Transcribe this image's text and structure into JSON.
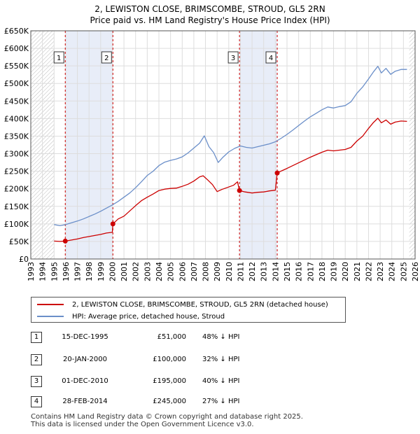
{
  "title_line1": "2, LEWISTON CLOSE, BRIMSCOMBE, STROUD, GL5 2RN",
  "title_line2": "Price paid vs. HM Land Registry's House Price Index (HPI)",
  "chart_data": {
    "type": "line",
    "title": "2, LEWISTON CLOSE, BRIMSCOMBE, STROUD, GL5 2RN — Price paid vs. HM Land Registry's House Price Index (HPI)",
    "xlim": [
      1993,
      2026
    ],
    "ylim": [
      0,
      650000
    ],
    "x_ticks": [
      1993,
      1994,
      1995,
      1996,
      1997,
      1998,
      1999,
      2000,
      2001,
      2002,
      2003,
      2004,
      2005,
      2006,
      2007,
      2008,
      2009,
      2010,
      2011,
      2012,
      2013,
      2014,
      2015,
      2016,
      2017,
      2018,
      2019,
      2020,
      2021,
      2022,
      2023,
      2024,
      2025,
      2026
    ],
    "y_ticks": [
      0,
      50000,
      100000,
      150000,
      200000,
      250000,
      300000,
      350000,
      400000,
      450000,
      500000,
      550000,
      600000,
      650000
    ],
    "y_tick_labels": [
      "£0",
      "£50K",
      "£100K",
      "£150K",
      "£200K",
      "£250K",
      "£300K",
      "£350K",
      "£400K",
      "£450K",
      "£500K",
      "£550K",
      "£600K",
      "£650K"
    ],
    "grid": true,
    "colors": {
      "property": "#cc0000",
      "hpi": "#6b8fc9",
      "shade": "#e8edf8",
      "hatch": "#bbbbbb"
    },
    "data_start_year": 1995.0,
    "data_end_year": 2025.5,
    "series": [
      {
        "name": "2, LEWISTON CLOSE, BRIMSCOMBE, STROUD, GL5 2RN (detached house)",
        "points": [
          [
            1995.0,
            51000
          ],
          [
            1995.5,
            50000
          ],
          [
            1995.96,
            51000
          ],
          [
            1996.5,
            54000
          ],
          [
            1997,
            57000
          ],
          [
            1997.5,
            61000
          ],
          [
            1998,
            64000
          ],
          [
            1998.5,
            67000
          ],
          [
            1999,
            70000
          ],
          [
            1999.5,
            74000
          ],
          [
            2000.0,
            76000
          ],
          [
            2000.05,
            100000
          ],
          [
            2000.5,
            114000
          ],
          [
            2001,
            122000
          ],
          [
            2001.5,
            137000
          ],
          [
            2002,
            152000
          ],
          [
            2002.5,
            166000
          ],
          [
            2003,
            176000
          ],
          [
            2003.5,
            185000
          ],
          [
            2004,
            195000
          ],
          [
            2004.5,
            199000
          ],
          [
            2005,
            201000
          ],
          [
            2005.5,
            202000
          ],
          [
            2006,
            207000
          ],
          [
            2006.5,
            213000
          ],
          [
            2007,
            222000
          ],
          [
            2007.5,
            234000
          ],
          [
            2007.8,
            237000
          ],
          [
            2008.2,
            225000
          ],
          [
            2008.6,
            212000
          ],
          [
            2009.0,
            192000
          ],
          [
            2009.4,
            198000
          ],
          [
            2009.9,
            204000
          ],
          [
            2010.4,
            210000
          ],
          [
            2010.75,
            220000
          ],
          [
            2010.92,
            195000
          ],
          [
            2011.4,
            191000
          ],
          [
            2012,
            188000
          ],
          [
            2012.5,
            190000
          ],
          [
            2013,
            191000
          ],
          [
            2013.5,
            194000
          ],
          [
            2014.0,
            196000
          ],
          [
            2014.16,
            245000
          ],
          [
            2014.6,
            252000
          ],
          [
            2015,
            258000
          ],
          [
            2015.5,
            266000
          ],
          [
            2016,
            274000
          ],
          [
            2016.5,
            282000
          ],
          [
            2017,
            290000
          ],
          [
            2017.5,
            297000
          ],
          [
            2018,
            304000
          ],
          [
            2018.5,
            310000
          ],
          [
            2019,
            308000
          ],
          [
            2019.5,
            310000
          ],
          [
            2020,
            312000
          ],
          [
            2020.5,
            318000
          ],
          [
            2021,
            336000
          ],
          [
            2021.5,
            350000
          ],
          [
            2022,
            372000
          ],
          [
            2022.4,
            388000
          ],
          [
            2022.8,
            401000
          ],
          [
            2023.1,
            388000
          ],
          [
            2023.5,
            396000
          ],
          [
            2023.9,
            384000
          ],
          [
            2024.3,
            390000
          ],
          [
            2024.8,
            393000
          ],
          [
            2025.3,
            392000
          ]
        ]
      },
      {
        "name": "HPI: Average price, detached house, Stroud",
        "points": [
          [
            1995.0,
            98000
          ],
          [
            1995.5,
            95000
          ],
          [
            1996,
            98000
          ],
          [
            1996.5,
            103000
          ],
          [
            1997,
            108000
          ],
          [
            1997.5,
            114000
          ],
          [
            1998,
            121000
          ],
          [
            1998.5,
            128000
          ],
          [
            1999,
            136000
          ],
          [
            1999.5,
            145000
          ],
          [
            2000,
            154000
          ],
          [
            2000.5,
            164000
          ],
          [
            2001,
            176000
          ],
          [
            2001.5,
            188000
          ],
          [
            2002,
            203000
          ],
          [
            2002.5,
            220000
          ],
          [
            2003,
            238000
          ],
          [
            2003.5,
            250000
          ],
          [
            2004,
            266000
          ],
          [
            2004.5,
            276000
          ],
          [
            2005,
            281000
          ],
          [
            2005.5,
            285000
          ],
          [
            2006,
            291000
          ],
          [
            2006.5,
            302000
          ],
          [
            2007,
            316000
          ],
          [
            2007.5,
            330000
          ],
          [
            2007.9,
            351000
          ],
          [
            2008.3,
            320000
          ],
          [
            2008.7,
            303000
          ],
          [
            2009.1,
            275000
          ],
          [
            2009.5,
            290000
          ],
          [
            2010.0,
            305000
          ],
          [
            2010.5,
            315000
          ],
          [
            2011.0,
            322000
          ],
          [
            2011.5,
            318000
          ],
          [
            2012,
            316000
          ],
          [
            2012.5,
            320000
          ],
          [
            2013,
            324000
          ],
          [
            2013.5,
            328000
          ],
          [
            2014,
            334000
          ],
          [
            2014.5,
            344000
          ],
          [
            2015,
            355000
          ],
          [
            2015.5,
            367000
          ],
          [
            2016,
            380000
          ],
          [
            2016.5,
            393000
          ],
          [
            2017,
            405000
          ],
          [
            2017.5,
            415000
          ],
          [
            2018,
            425000
          ],
          [
            2018.5,
            433000
          ],
          [
            2019,
            430000
          ],
          [
            2019.5,
            434000
          ],
          [
            2020,
            437000
          ],
          [
            2020.5,
            448000
          ],
          [
            2021,
            472000
          ],
          [
            2021.5,
            490000
          ],
          [
            2022,
            513000
          ],
          [
            2022.4,
            532000
          ],
          [
            2022.8,
            549000
          ],
          [
            2023.1,
            530000
          ],
          [
            2023.5,
            543000
          ],
          [
            2023.9,
            526000
          ],
          [
            2024.3,
            535000
          ],
          [
            2024.8,
            540000
          ],
          [
            2025.3,
            540000
          ]
        ]
      }
    ],
    "sales": [
      {
        "n": "1",
        "year": 1995.96,
        "price": 51000
      },
      {
        "n": "2",
        "year": 2000.05,
        "price": 100000
      },
      {
        "n": "3",
        "year": 2010.92,
        "price": 195000
      },
      {
        "n": "4",
        "year": 2014.16,
        "price": 245000
      }
    ],
    "shaded_ranges": [
      [
        1995.96,
        2000.05
      ],
      [
        2010.92,
        2014.16
      ]
    ]
  },
  "legend": {
    "property_label": "2, LEWISTON CLOSE, BRIMSCOMBE, STROUD, GL5 2RN (detached house)",
    "hpi_label": "HPI: Average price, detached house, Stroud"
  },
  "transactions": [
    {
      "n": "1",
      "date": "15-DEC-1995",
      "price": "£51,000",
      "delta": "48% ↓ HPI"
    },
    {
      "n": "2",
      "date": "20-JAN-2000",
      "price": "£100,000",
      "delta": "32% ↓ HPI"
    },
    {
      "n": "3",
      "date": "01-DEC-2010",
      "price": "£195,000",
      "delta": "40% ↓ HPI"
    },
    {
      "n": "4",
      "date": "28-FEB-2014",
      "price": "£245,000",
      "delta": "27% ↓ HPI"
    }
  ],
  "footer_line1": "Contains HM Land Registry data © Crown copyright and database right 2025.",
  "footer_line2": "This data is licensed under the Open Government Licence v3.0."
}
